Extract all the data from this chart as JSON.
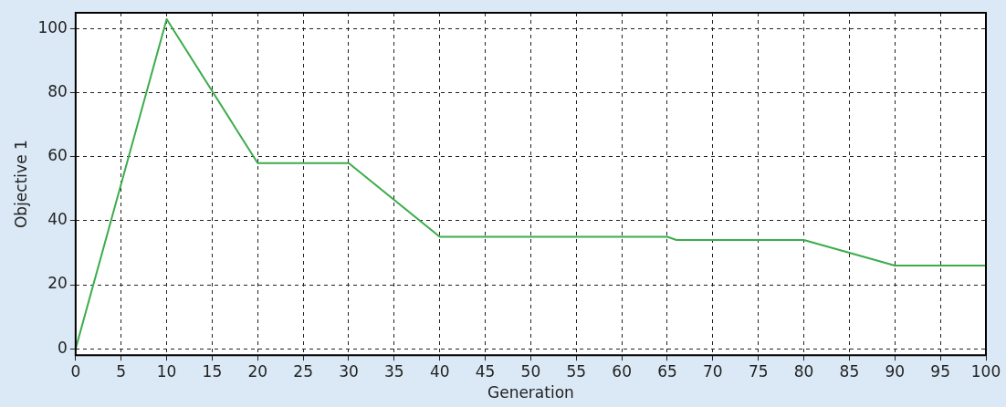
{
  "chart_data": {
    "type": "line",
    "xlabel": "Generation",
    "ylabel": "Objective 1",
    "x": [
      0,
      10,
      20,
      30,
      40,
      65,
      66,
      80,
      90,
      100
    ],
    "series": [
      {
        "color": "#3cac4c",
        "values": [
          0,
          103,
          58,
          58,
          35,
          35,
          34,
          34,
          26,
          26
        ]
      }
    ],
    "xlim": [
      0,
      100
    ],
    "xticks": [
      0,
      5,
      10,
      15,
      20,
      25,
      30,
      35,
      40,
      45,
      50,
      55,
      60,
      65,
      70,
      75,
      80,
      85,
      90,
      95,
      100
    ],
    "ylim": [
      -2,
      105
    ],
    "yticks": [
      0,
      20,
      40,
      60,
      80,
      100
    ],
    "grid": true,
    "legend": false,
    "marker": "none",
    "line_style": "solid"
  }
}
